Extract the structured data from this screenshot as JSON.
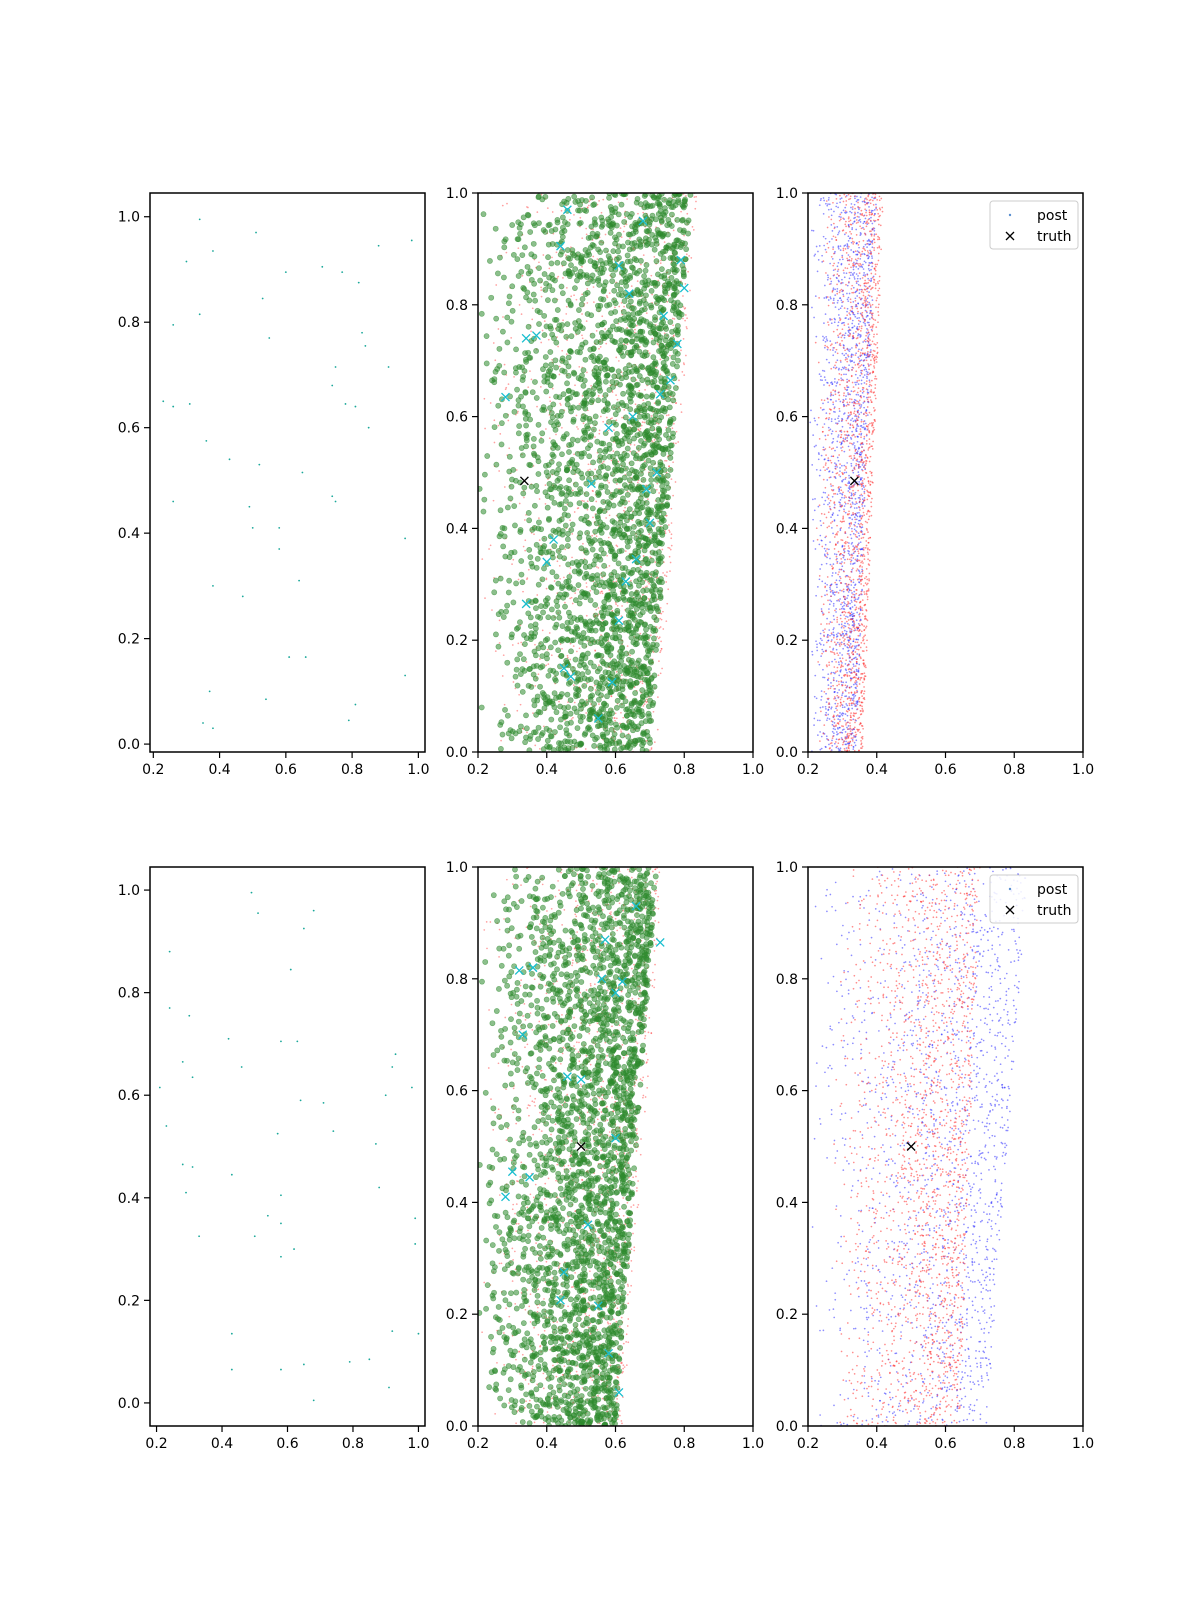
{
  "chart_data": [
    {
      "type": "scatter",
      "panel": "row1-col1",
      "xlim": [
        0.19,
        1.02
      ],
      "ylim": [
        -0.015,
        1.045
      ],
      "xticks": [
        "0.2",
        "0.4",
        "0.6",
        "0.8",
        "1.0"
      ],
      "yticks": [
        "0.0",
        "0.2",
        "0.4",
        "0.6",
        "0.8",
        "1.0"
      ],
      "series": [
        {
          "color": "#1aa89a",
          "marker": "dot",
          "points": [
            [
              0.34,
              0.995
            ],
            [
              0.51,
              0.97
            ],
            [
              0.3,
              0.915
            ],
            [
              0.38,
              0.935
            ],
            [
              0.6,
              0.895
            ],
            [
              0.71,
              0.905
            ],
            [
              0.77,
              0.895
            ],
            [
              0.82,
              0.875
            ],
            [
              0.88,
              0.945
            ],
            [
              0.98,
              0.955
            ],
            [
              0.53,
              0.845
            ],
            [
              0.34,
              0.815
            ],
            [
              0.26,
              0.795
            ],
            [
              0.55,
              0.77
            ],
            [
              0.83,
              0.78
            ],
            [
              0.84,
              0.755
            ],
            [
              0.75,
              0.715
            ],
            [
              0.91,
              0.715
            ],
            [
              0.74,
              0.68
            ],
            [
              0.23,
              0.65
            ],
            [
              0.26,
              0.64
            ],
            [
              0.31,
              0.645
            ],
            [
              0.78,
              0.645
            ],
            [
              0.81,
              0.64
            ],
            [
              0.85,
              0.6
            ],
            [
              0.36,
              0.575
            ],
            [
              0.43,
              0.54
            ],
            [
              0.52,
              0.53
            ],
            [
              0.65,
              0.515
            ],
            [
              0.26,
              0.46
            ],
            [
              0.74,
              0.47
            ],
            [
              0.75,
              0.46
            ],
            [
              0.49,
              0.45
            ],
            [
              0.5,
              0.41
            ],
            [
              0.58,
              0.41
            ],
            [
              0.96,
              0.39
            ],
            [
              0.58,
              0.37
            ],
            [
              0.64,
              0.31
            ],
            [
              0.38,
              0.3
            ],
            [
              0.47,
              0.28
            ],
            [
              0.61,
              0.165
            ],
            [
              0.66,
              0.165
            ],
            [
              0.37,
              0.1
            ],
            [
              0.96,
              0.13
            ],
            [
              0.54,
              0.085
            ],
            [
              0.81,
              0.075
            ],
            [
              0.35,
              0.04
            ],
            [
              0.38,
              0.03
            ],
            [
              0.79,
              0.045
            ]
          ]
        }
      ]
    },
    {
      "type": "scatter",
      "panel": "row1-col2",
      "xlim": [
        0.2,
        1.0
      ],
      "ylim": [
        0.0,
        1.0
      ],
      "xticks": [
        "0.2",
        "0.4",
        "0.6",
        "0.8",
        "1.0"
      ],
      "yticks": [
        "0.0",
        "0.2",
        "0.4",
        "0.6",
        "0.8",
        "1.0"
      ],
      "series": [
        {
          "color": "#ff5050",
          "marker": "small-dot",
          "band": {
            "x_left": 0.2,
            "x_right_bottom": 0.72,
            "x_right_top": 0.84
          },
          "count": 1300
        },
        {
          "color": "#2e8b2e",
          "marker": "circle",
          "band": {
            "x_left": 0.2,
            "x_right_bottom": 0.7,
            "x_right_top": 0.82
          },
          "count": 2600
        },
        {
          "color": "#17becf",
          "marker": "x",
          "points": [
            [
              0.46,
              0.97
            ],
            [
              0.44,
              0.905
            ],
            [
              0.37,
              0.745
            ],
            [
              0.28,
              0.635
            ],
            [
              0.34,
              0.74
            ],
            [
              0.42,
              0.38
            ],
            [
              0.4,
              0.34
            ],
            [
              0.34,
              0.265
            ],
            [
              0.45,
              0.15
            ],
            [
              0.47,
              0.135
            ],
            [
              0.55,
              0.06
            ],
            [
              0.59,
              0.125
            ],
            [
              0.61,
              0.235
            ],
            [
              0.63,
              0.305
            ],
            [
              0.66,
              0.345
            ],
            [
              0.7,
              0.41
            ],
            [
              0.69,
              0.47
            ],
            [
              0.72,
              0.5
            ],
            [
              0.65,
              0.6
            ],
            [
              0.73,
              0.64
            ],
            [
              0.76,
              0.665
            ],
            [
              0.78,
              0.73
            ],
            [
              0.74,
              0.78
            ],
            [
              0.8,
              0.83
            ],
            [
              0.79,
              0.88
            ],
            [
              0.64,
              0.82
            ],
            [
              0.58,
              0.58
            ],
            [
              0.53,
              0.48
            ],
            [
              0.61,
              0.87
            ],
            [
              0.68,
              0.95
            ]
          ]
        }
      ],
      "truth": [
        0.335,
        0.485
      ]
    },
    {
      "type": "scatter",
      "panel": "row1-col3",
      "xlim": [
        0.2,
        1.0
      ],
      "ylim": [
        0.0,
        1.0
      ],
      "xticks": [
        "0.2",
        "0.4",
        "0.6",
        "0.8",
        "1.0"
      ],
      "yticks": [
        "0.0",
        "0.2",
        "0.4",
        "0.6",
        "0.8",
        "1.0"
      ],
      "legend": {
        "placement": "top-right",
        "entries": [
          "post",
          "truth"
        ]
      },
      "series": [
        {
          "name": "post",
          "color": "#3030ff",
          "marker": "small-dot",
          "band": {
            "x_left": 0.2,
            "x_right_bottom": 0.34,
            "x_right_top": 0.4
          },
          "count": 1600
        },
        {
          "color": "#ff3030",
          "marker": "small-dot",
          "band": {
            "x_left": 0.22,
            "x_right_bottom": 0.36,
            "x_right_top": 0.42
          },
          "count": 1600
        }
      ],
      "truth": [
        0.335,
        0.485
      ]
    },
    {
      "type": "scatter",
      "panel": "row2-col1",
      "xlim": [
        0.18,
        1.02
      ],
      "ylim": [
        -0.045,
        1.045
      ],
      "xticks": [
        "0.2",
        "0.4",
        "0.6",
        "0.8",
        "1.0"
      ],
      "yticks": [
        "0.0",
        "0.2",
        "0.4",
        "0.6",
        "0.8",
        "1.0"
      ],
      "series": [
        {
          "color": "#1aa89a",
          "marker": "dot",
          "points": [
            [
              0.49,
              0.995
            ],
            [
              0.51,
              0.955
            ],
            [
              0.68,
              0.96
            ],
            [
              0.65,
              0.925
            ],
            [
              0.24,
              0.88
            ],
            [
              0.61,
              0.845
            ],
            [
              0.24,
              0.77
            ],
            [
              0.3,
              0.755
            ],
            [
              0.42,
              0.71
            ],
            [
              0.58,
              0.705
            ],
            [
              0.63,
              0.705
            ],
            [
              0.93,
              0.68
            ],
            [
              0.28,
              0.665
            ],
            [
              0.46,
              0.655
            ],
            [
              0.92,
              0.655
            ],
            [
              0.31,
              0.635
            ],
            [
              0.21,
              0.615
            ],
            [
              0.98,
              0.615
            ],
            [
              0.9,
              0.6
            ],
            [
              0.64,
              0.59
            ],
            [
              0.71,
              0.585
            ],
            [
              0.23,
              0.54
            ],
            [
              0.74,
              0.53
            ],
            [
              0.57,
              0.525
            ],
            [
              0.87,
              0.505
            ],
            [
              0.28,
              0.465
            ],
            [
              0.31,
              0.46
            ],
            [
              0.43,
              0.445
            ],
            [
              0.88,
              0.42
            ],
            [
              0.29,
              0.41
            ],
            [
              0.58,
              0.405
            ],
            [
              0.54,
              0.365
            ],
            [
              0.58,
              0.35
            ],
            [
              0.99,
              0.36
            ],
            [
              0.5,
              0.325
            ],
            [
              0.33,
              0.325
            ],
            [
              0.99,
              0.31
            ],
            [
              0.62,
              0.3
            ],
            [
              0.58,
              0.285
            ],
            [
              0.43,
              0.135
            ],
            [
              0.92,
              0.14
            ],
            [
              1.0,
              0.135
            ],
            [
              0.43,
              0.065
            ],
            [
              0.58,
              0.065
            ],
            [
              0.65,
              0.075
            ],
            [
              0.79,
              0.08
            ],
            [
              0.85,
              0.085
            ],
            [
              0.91,
              0.03
            ],
            [
              0.68,
              0.005
            ]
          ]
        }
      ]
    },
    {
      "type": "scatter",
      "panel": "row2-col2",
      "xlim": [
        0.2,
        1.0
      ],
      "ylim": [
        0.0,
        1.0
      ],
      "xticks": [
        "0.2",
        "0.4",
        "0.6",
        "0.8",
        "1.0"
      ],
      "yticks": [
        "0.0",
        "0.2",
        "0.4",
        "0.6",
        "0.8",
        "1.0"
      ],
      "series": [
        {
          "color": "#ff5050",
          "marker": "small-dot",
          "band": {
            "x_left": 0.2,
            "x_right_bottom": 0.62,
            "x_right_top": 0.74
          },
          "count": 1300
        },
        {
          "color": "#2e8b2e",
          "marker": "circle",
          "band": {
            "x_left": 0.2,
            "x_right_bottom": 0.6,
            "x_right_top": 0.72
          },
          "count": 2600
        },
        {
          "color": "#17becf",
          "marker": "x",
          "points": [
            [
              0.32,
              0.815
            ],
            [
              0.36,
              0.82
            ],
            [
              0.33,
              0.7
            ],
            [
              0.46,
              0.625
            ],
            [
              0.5,
              0.62
            ],
            [
              0.3,
              0.455
            ],
            [
              0.28,
              0.41
            ],
            [
              0.35,
              0.445
            ],
            [
              0.45,
              0.275
            ],
            [
              0.44,
              0.225
            ],
            [
              0.55,
              0.215
            ],
            [
              0.61,
              0.06
            ],
            [
              0.58,
              0.13
            ],
            [
              0.6,
              0.515
            ],
            [
              0.56,
              0.8
            ],
            [
              0.6,
              0.775
            ],
            [
              0.62,
              0.795
            ],
            [
              0.73,
              0.865
            ],
            [
              0.57,
              0.87
            ],
            [
              0.66,
              0.93
            ],
            [
              0.52,
              0.36
            ]
          ]
        }
      ],
      "truth": [
        0.5,
        0.5
      ]
    },
    {
      "type": "scatter",
      "panel": "row2-col3",
      "xlim": [
        0.2,
        1.0
      ],
      "ylim": [
        0.0,
        1.0
      ],
      "xticks": [
        "0.2",
        "0.4",
        "0.6",
        "0.8",
        "1.0"
      ],
      "yticks": [
        "0.0",
        "0.2",
        "0.4",
        "0.6",
        "0.8",
        "1.0"
      ],
      "legend": {
        "placement": "top-right",
        "entries": [
          "post",
          "truth"
        ]
      },
      "series": [
        {
          "name": "post",
          "color": "#3030ff",
          "marker": "small-dot",
          "band": {
            "x_left": 0.2,
            "x_right_bottom": 0.72,
            "x_right_top": 0.84
          },
          "count": 1700
        },
        {
          "color": "#ff3030",
          "marker": "small-dot",
          "band": {
            "x_left": 0.26,
            "x_right_bottom": 0.64,
            "x_right_top": 0.7
          },
          "count": 1800
        }
      ],
      "truth": [
        0.5,
        0.5
      ]
    }
  ]
}
